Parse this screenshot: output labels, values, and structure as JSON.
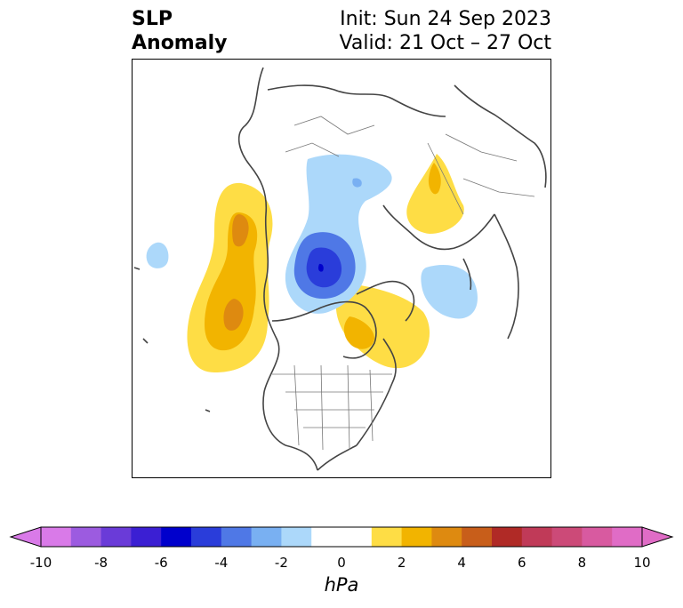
{
  "title": {
    "line1": "SLP",
    "line2": "Anomaly",
    "init": "Init: Sun 24 Sep 2023",
    "valid": "Valid: 21 Oct – 27 Oct"
  },
  "colorbar": {
    "units": "hPa",
    "range": [
      -10,
      10
    ],
    "step": 1,
    "extend": "both",
    "tick_labels": [
      "-10",
      "-8",
      "-6",
      "-4",
      "-2",
      "0",
      "2",
      "4",
      "6",
      "8",
      "10"
    ],
    "colors": [
      "#d97ae8",
      "#9c5be0",
      "#6a3bd8",
      "#3b1fd3",
      "#0000cc",
      "#2a3dda",
      "#4f78e6",
      "#79b0f2",
      "#acd8fa",
      "#ffffff",
      "#ffffff",
      "#fedd45",
      "#f2b400",
      "#de8a10",
      "#c85e1a",
      "#b02a26",
      "#c03a58",
      "#cc4a78",
      "#d85aa0",
      "#e06cc6"
    ]
  }
}
